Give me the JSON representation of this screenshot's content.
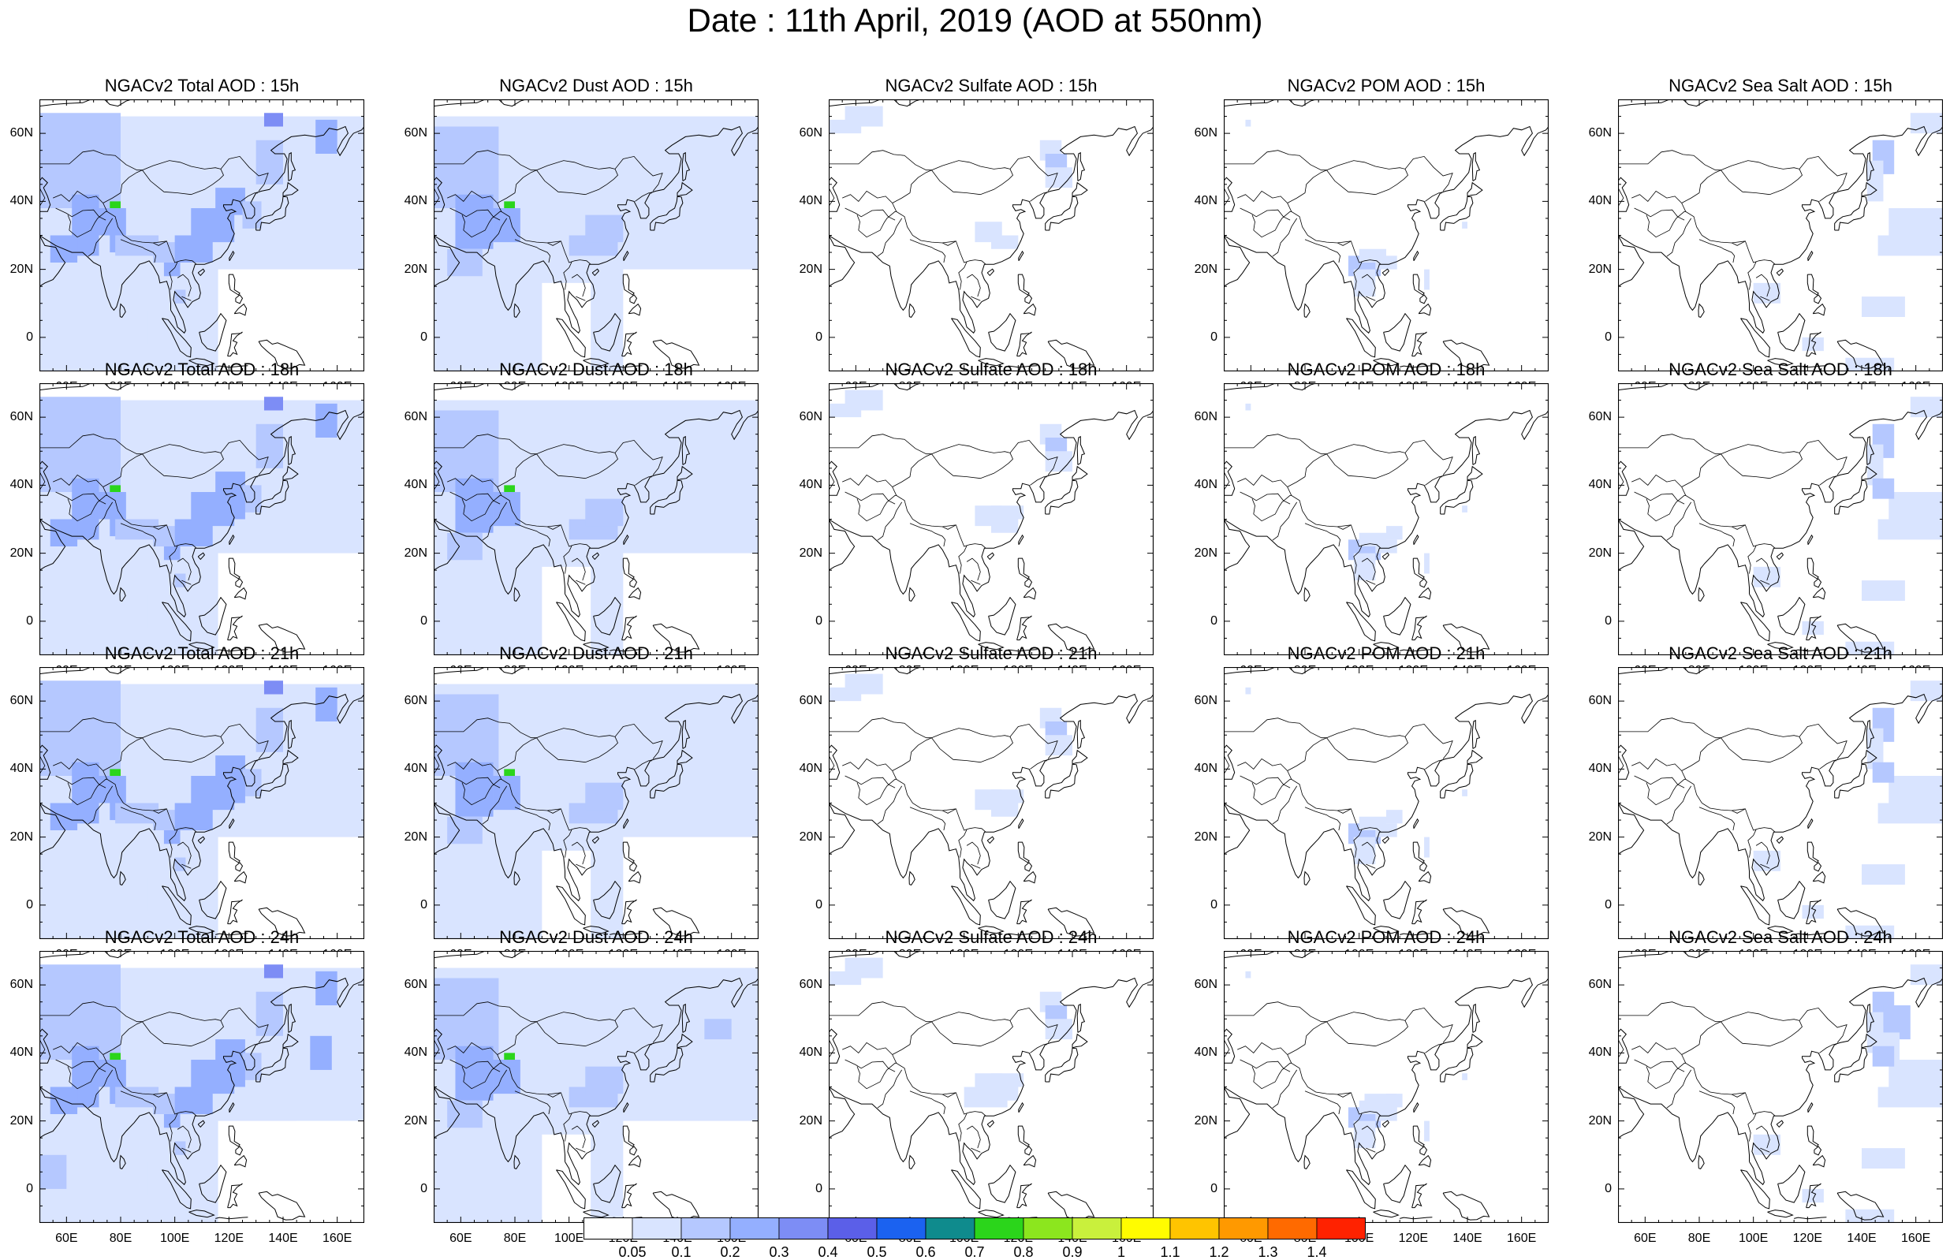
{
  "title": "Date : 11th April, 2019 (AOD at 550nm)",
  "rows": [
    "15h",
    "18h",
    "21h",
    "24h"
  ],
  "species": [
    {
      "key": "total",
      "titles": [
        "NGACv2 Total AOD : 15h",
        "NGACv2 Total AOD : 18h",
        "NGACv2 Total AOD : 21h",
        "NGACv2 Total AOD : 24h"
      ]
    },
    {
      "key": "dust",
      "titles": [
        "NGACv2 Dust AOD : 15h",
        "NGACv2 Dust AOD : 18h",
        "NGACv2 Dust AOD : 21h",
        "NGACv2 Dust AOD : 24h"
      ]
    },
    {
      "key": "sulfate",
      "titles": [
        "NGACv2 Sulfate AOD : 15h",
        "NGACv2 Sulfate AOD : 18h",
        "NGACv2 Sulfate AOD : 21h",
        "NGACv2 Sulfate AOD : 24h"
      ]
    },
    {
      "key": "pom",
      "titles": [
        "NGACv2 POM AOD : 15h",
        "NGACv2 POM AOD : 18h",
        "NGACv2 POM AOD : 21h",
        "NGACv2 POM AOD : 24h"
      ]
    },
    {
      "key": "seasalt",
      "titles": [
        "NGACv2 Sea Salt AOD : 15h",
        "NGACv2 Sea Salt AOD : 18h",
        "NGACv2 Sea Salt AOD : 21h",
        "NGACv2 Sea Salt  AOD : 24h"
      ]
    }
  ],
  "lat_ticks": [
    "60N",
    "40N",
    "20N",
    "0"
  ],
  "lon_ticks": [
    "60E",
    "80E",
    "100E",
    "120E",
    "140E",
    "160E"
  ],
  "map_extent": {
    "lon": [
      50,
      170
    ],
    "lat": [
      -10,
      70
    ]
  },
  "colorbar": {
    "labels": [
      "0.05",
      "0.1",
      "0.2",
      "0.3",
      "0.4",
      "0.5",
      "0.6",
      "0.7",
      "0.8",
      "0.9",
      "1",
      "1.1",
      "1.2",
      "1.3",
      "1.4"
    ],
    "colors": [
      "#ffffff",
      "#d9e4ff",
      "#b5c8ff",
      "#94afff",
      "#7d8df5",
      "#5b5fe8",
      "#1b62f0",
      "#0f8b8d",
      "#2bd51b",
      "#8ce61e",
      "#c9f03c",
      "#fffc00",
      "#ffc400",
      "#ff9900",
      "#ff6a00",
      "#ff2200"
    ]
  }
}
